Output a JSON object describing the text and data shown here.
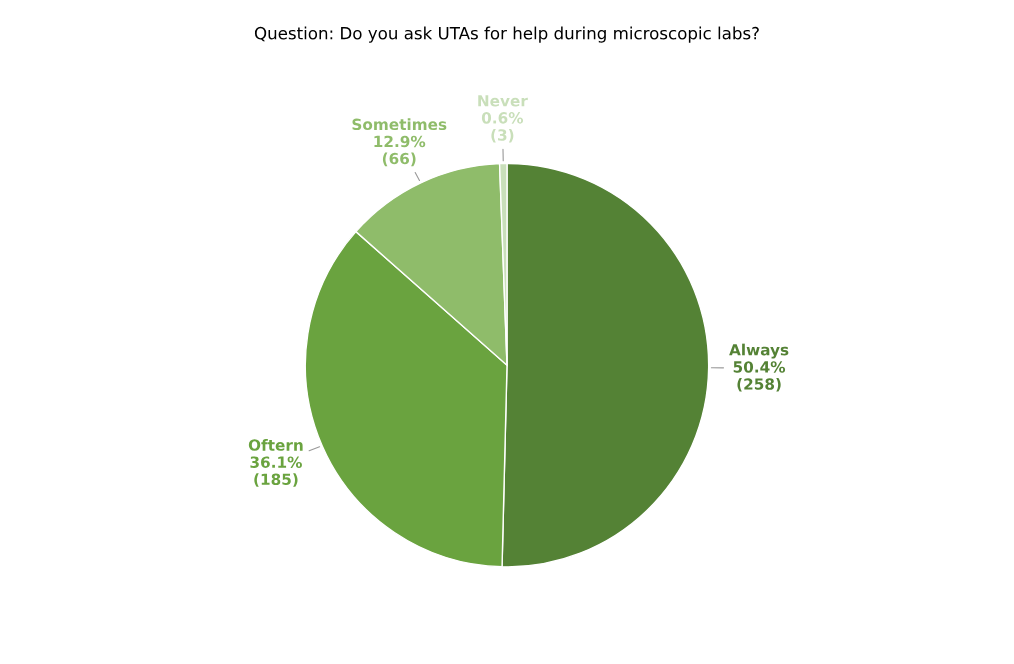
{
  "chart_data": {
    "type": "pie",
    "title": "Question: Do you ask UTAs for help during microscopic labs?",
    "categories": [
      "Always",
      "Oftern",
      "Sometimes",
      "Never"
    ],
    "values": [
      258,
      185,
      66,
      3
    ],
    "colors": [
      "#548235",
      "#6aa33f",
      "#8fbc6a",
      "#c9dfba"
    ],
    "value_labels": [
      "50.4%\n(258)",
      "36.1%\n(185)",
      "12.9%\n(66)",
      "0.6%\n(3)"
    ]
  }
}
